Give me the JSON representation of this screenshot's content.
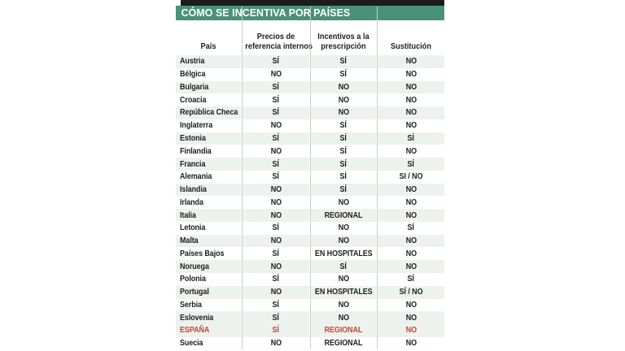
{
  "title": "CÓMO SE INCENTIVA POR PAÍSES",
  "colors": {
    "header_green": "#4a9179",
    "top_bar": "#1c1c1c",
    "row_band": "#edf2ef",
    "text": "#1e1e1e",
    "highlight_red": "#c2462f",
    "divider": "#cccccc"
  },
  "chart_data": {
    "type": "table",
    "title": "CÓMO SE INCENTIVA POR PAÍSES",
    "columns": [
      "País",
      "Precios de referencia internos",
      "Incentivos a la prescripción",
      "Sustitución"
    ],
    "column_header_lines": [
      [
        "País"
      ],
      [
        "Precios de",
        "referencia internos"
      ],
      [
        "Incentivos a la",
        "prescripción"
      ],
      [
        "Sustitución"
      ]
    ],
    "legend_position": "none",
    "grid": "zebra-rows",
    "rows": [
      {
        "pais": "Austria",
        "valores": [
          "SÍ",
          "SÍ",
          "NO"
        ],
        "highlight": false
      },
      {
        "pais": "Bélgica",
        "valores": [
          "NO",
          "SÍ",
          "NO"
        ],
        "highlight": false
      },
      {
        "pais": "Bulgaria",
        "valores": [
          "SÍ",
          "NO",
          "NO"
        ],
        "highlight": false
      },
      {
        "pais": "Croacia",
        "valores": [
          "SÍ",
          "NO",
          "NO"
        ],
        "highlight": false
      },
      {
        "pais": "República Checa",
        "valores": [
          "SÍ",
          "NO",
          "NO"
        ],
        "highlight": false
      },
      {
        "pais": "Inglaterra",
        "valores": [
          "NO",
          "SÍ",
          "NO"
        ],
        "highlight": false
      },
      {
        "pais": "Estonia",
        "valores": [
          "SÍ",
          "SÍ",
          "SÍ"
        ],
        "highlight": false
      },
      {
        "pais": "Finlandia",
        "valores": [
          "NO",
          "SÍ",
          "NO"
        ],
        "highlight": false
      },
      {
        "pais": "Francia",
        "valores": [
          "SÍ",
          "SÍ",
          "SÍ"
        ],
        "highlight": false
      },
      {
        "pais": "Alemania",
        "valores": [
          "SÍ",
          "SÍ",
          "SI / NO"
        ],
        "highlight": false
      },
      {
        "pais": "Islandia",
        "valores": [
          "NO",
          "SÍ",
          "NO"
        ],
        "highlight": false
      },
      {
        "pais": "Irlanda",
        "valores": [
          "NO",
          "NO",
          "NO"
        ],
        "highlight": false
      },
      {
        "pais": "Italia",
        "valores": [
          "NO",
          "REGIONAL",
          "NO"
        ],
        "highlight": false
      },
      {
        "pais": "Letonia",
        "valores": [
          "SÍ",
          "NO",
          "SÍ"
        ],
        "highlight": false
      },
      {
        "pais": "Malta",
        "valores": [
          "NO",
          "NO",
          "NO"
        ],
        "highlight": false
      },
      {
        "pais": "Países Bajos",
        "valores": [
          "SÍ",
          "EN HOSPITALES",
          "NO"
        ],
        "highlight": false
      },
      {
        "pais": "Noruega",
        "valores": [
          "NO",
          "SÍ",
          "NO"
        ],
        "highlight": false
      },
      {
        "pais": "Polonia",
        "valores": [
          "SÍ",
          "NO",
          "SÍ"
        ],
        "highlight": false
      },
      {
        "pais": "Portugal",
        "valores": [
          "NO",
          "EN HOSPITALES",
          "SÍ / NO"
        ],
        "highlight": false
      },
      {
        "pais": "Serbia",
        "valores": [
          "SÍ",
          "NO",
          "NO"
        ],
        "highlight": false
      },
      {
        "pais": "Eslovenia",
        "valores": [
          "SÍ",
          "NO",
          "NO"
        ],
        "highlight": false
      },
      {
        "pais": "ESPAÑA",
        "valores": [
          "SÍ",
          "REGIONAL",
          "NO"
        ],
        "highlight": true
      },
      {
        "pais": "Suecia",
        "valores": [
          "NO",
          "REGIONAL",
          "NO"
        ],
        "highlight": false
      }
    ]
  }
}
